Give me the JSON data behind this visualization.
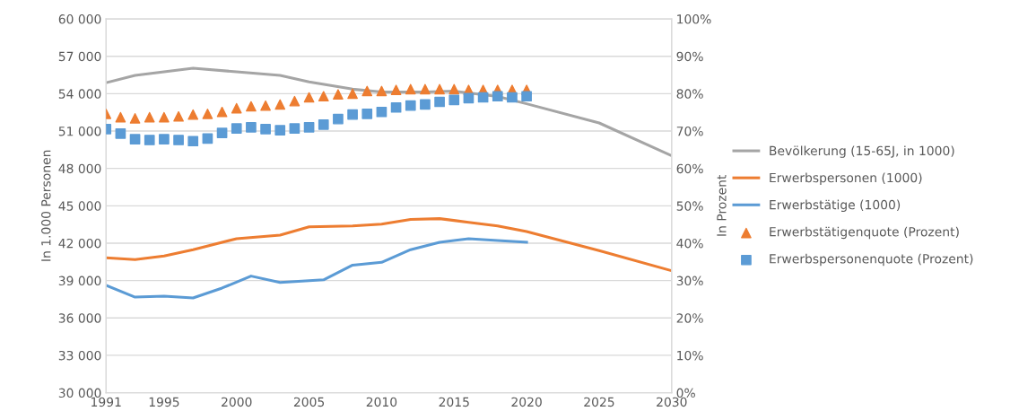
{
  "chart_data": {
    "type": "line",
    "ylabel": "In 1.000 Personen",
    "y2label": "In Prozent",
    "xlim": [
      1991,
      2030
    ],
    "xticks": [
      1991,
      1995,
      2000,
      2005,
      2010,
      2015,
      2020,
      2025,
      2030
    ],
    "ylim": [
      30000,
      60000
    ],
    "yticks": [
      {
        "value": 30000,
        "label": "30 000"
      },
      {
        "value": 33000,
        "label": "33 000"
      },
      {
        "value": 36000,
        "label": "36 000"
      },
      {
        "value": 39000,
        "label": "39 000"
      },
      {
        "value": 42000,
        "label": "42 000"
      },
      {
        "value": 45000,
        "label": "45 000"
      },
      {
        "value": 48000,
        "label": "48 000"
      },
      {
        "value": 51000,
        "label": "51 000"
      },
      {
        "value": 54000,
        "label": "54 000"
      },
      {
        "value": 57000,
        "label": "57 000"
      },
      {
        "value": 60000,
        "label": "60 000"
      }
    ],
    "y2lim": [
      0,
      100
    ],
    "y2ticks": [
      {
        "value": 0,
        "label": "0%"
      },
      {
        "value": 10,
        "label": "10%"
      },
      {
        "value": 20,
        "label": "20%"
      },
      {
        "value": 30,
        "label": "30%"
      },
      {
        "value": 40,
        "label": "40%"
      },
      {
        "value": 50,
        "label": "50%"
      },
      {
        "value": 60,
        "label": "60%"
      },
      {
        "value": 70,
        "label": "70%"
      },
      {
        "value": 80,
        "label": "80%"
      },
      {
        "value": 90,
        "label": "90%"
      },
      {
        "value": 100,
        "label": "100%"
      }
    ],
    "grid": "y",
    "legend": "right",
    "series": [
      {
        "name": "Bevölkerung (15-65J, in 1000)",
        "color": "#a5a5a5",
        "x": [
          1991,
          1993,
          1997,
          2000,
          2003,
          2005,
          2008,
          2010,
          2013,
          2015,
          2018,
          2020,
          2025,
          2030
        ],
        "values": [
          54880,
          55460,
          56050,
          55750,
          55460,
          54950,
          54360,
          54140,
          54140,
          54200,
          53780,
          53190,
          51650,
          49020
        ]
      },
      {
        "name": "Erwerbspersonen (1000)",
        "color": "#ed7d31",
        "x": [
          1991,
          1993,
          1995,
          1997,
          2000,
          2003,
          2005,
          2008,
          2010,
          2012,
          2014,
          2016,
          2018,
          2020,
          2025,
          2030
        ],
        "values": [
          40820,
          40680,
          40970,
          41480,
          42360,
          42650,
          43310,
          43380,
          43530,
          43900,
          43970,
          43680,
          43380,
          42940,
          41400,
          39790
        ]
      },
      {
        "name": "Erwerbstätige (1000)",
        "color": "#5b9bd5",
        "x": [
          1991,
          1993,
          1995,
          1997,
          1999,
          2001,
          2003,
          2005,
          2006,
          2008,
          2010,
          2012,
          2014,
          2016,
          2018,
          2020
        ],
        "values": [
          38620,
          37670,
          37750,
          37600,
          38400,
          39360,
          38840,
          38990,
          39060,
          40240,
          40460,
          41480,
          42070,
          42360,
          42210,
          42070
        ]
      },
      {
        "name": "Erwerbstätigenquote (Prozent)",
        "type": "scatter",
        "axis": "y2",
        "marker": "triangle",
        "color": "#ed7d31",
        "x": [
          1991,
          1992,
          1993,
          1994,
          1995,
          1996,
          1997,
          1998,
          1999,
          2000,
          2001,
          2002,
          2003,
          2004,
          2005,
          2006,
          2007,
          2008,
          2009,
          2010,
          2011,
          2012,
          2013,
          2014,
          2015,
          2016,
          2017,
          2018,
          2019,
          2020
        ],
        "values": [
          74.6,
          73.7,
          73.4,
          73.7,
          73.7,
          73.9,
          74.4,
          74.6,
          75.1,
          76.1,
          76.6,
          76.8,
          77.1,
          78.0,
          79.0,
          79.3,
          79.8,
          80.0,
          80.7,
          80.7,
          81.0,
          81.2,
          81.2,
          81.2,
          81.2,
          81.0,
          81.0,
          81.0,
          81.0,
          81.0
        ]
      },
      {
        "name": "Erwerbspersonenquote (Prozent)",
        "type": "scatter",
        "axis": "y2",
        "marker": "square",
        "color": "#5b9bd5",
        "x": [
          1991,
          1992,
          1993,
          1994,
          1995,
          1996,
          1997,
          1998,
          1999,
          2000,
          2001,
          2002,
          2003,
          2004,
          2005,
          2006,
          2007,
          2008,
          2009,
          2010,
          2011,
          2012,
          2013,
          2014,
          2015,
          2016,
          2017,
          2018,
          2019,
          2020
        ],
        "values": [
          70.5,
          69.3,
          67.8,
          67.6,
          67.8,
          67.6,
          67.3,
          68.0,
          69.5,
          70.7,
          71.0,
          70.5,
          70.2,
          70.7,
          71.0,
          71.7,
          73.2,
          74.4,
          74.6,
          75.1,
          76.3,
          76.8,
          77.1,
          77.8,
          78.3,
          78.8,
          79.0,
          79.3,
          79.0,
          79.3
        ]
      }
    ]
  }
}
